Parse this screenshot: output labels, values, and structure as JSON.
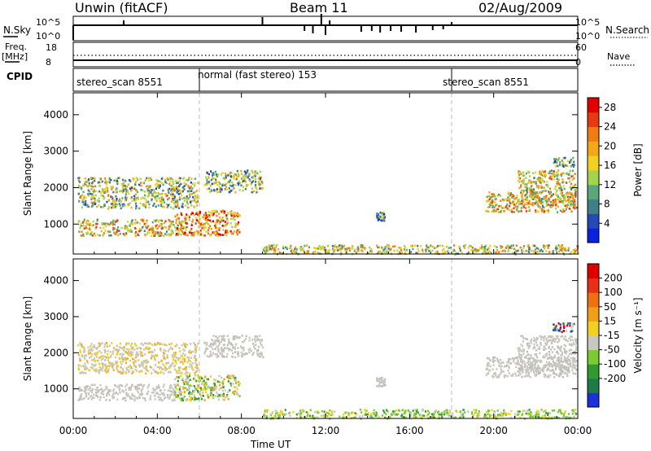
{
  "header": {
    "station": "Unwin (fitACF)",
    "beam": "Beam 11",
    "date": "02/Aug/2009"
  },
  "params": {
    "nsky_label": "N.Sky",
    "nsearch_label": "N.Search",
    "nsky_ticks": [
      "10^5",
      "10^0"
    ],
    "freq_label": "Freq.",
    "freq_unit": "[MHz]",
    "freq_ticks": [
      "18",
      "8"
    ],
    "nave_label": "Nave",
    "nave_ticks": [
      "60",
      "0"
    ],
    "cpid_label": "CPID",
    "cpid_segments": [
      {
        "label": "stereo_scan 8551",
        "start_h": 0,
        "end_h": 6
      },
      {
        "label": "normal (fast stereo) 153",
        "start_h": 6,
        "end_h": 18
      },
      {
        "label": "stereo_scan 8551",
        "start_h": 18,
        "end_h": 24
      }
    ]
  },
  "chart_data": [
    {
      "type": "heatmap",
      "panel": "power",
      "ylabel": "Slant Range [km]",
      "xlabel": "Time UT",
      "xticks": [
        "00:00",
        "04:00",
        "08:00",
        "12:00",
        "16:00",
        "20:00",
        "00:00"
      ],
      "yticks": [
        "1000",
        "2000",
        "3000",
        "4000"
      ],
      "xlim_hours": [
        0,
        24
      ],
      "ylim_km": [
        180,
        4600
      ],
      "colorbar": {
        "label": "Power [dB]",
        "ticks": [
          "4",
          "8",
          "12",
          "16",
          "20",
          "24",
          "28"
        ],
        "range": [
          0,
          30
        ],
        "colors": [
          "#0a22e0",
          "#2648b8",
          "#3f7f86",
          "#58a87a",
          "#a6d34e",
          "#f0d020",
          "#f2a818",
          "#f07d10",
          "#e83a10",
          "#e00000"
        ]
      },
      "echo_regions": [
        {
          "t0": 0.2,
          "t1": 5.9,
          "r0": 1450,
          "r1": 2300,
          "level": 0.45
        },
        {
          "t0": 0.2,
          "t1": 5.2,
          "r0": 700,
          "r1": 1150,
          "level": 0.55
        },
        {
          "t0": 4.8,
          "t1": 7.9,
          "r0": 700,
          "r1": 1400,
          "level": 0.7
        },
        {
          "t0": 6.2,
          "t1": 9.0,
          "r0": 1900,
          "r1": 2500,
          "level": 0.4
        },
        {
          "t0": 9.0,
          "t1": 24.0,
          "r0": 200,
          "r1": 450,
          "level": 0.5
        },
        {
          "t0": 14.4,
          "t1": 14.8,
          "r0": 1100,
          "r1": 1350,
          "level": 0.3
        },
        {
          "t0": 19.6,
          "t1": 23.9,
          "r0": 1350,
          "r1": 1900,
          "level": 0.6
        },
        {
          "t0": 21.1,
          "t1": 23.9,
          "r0": 1500,
          "r1": 2500,
          "level": 0.55
        },
        {
          "t0": 22.8,
          "t1": 23.8,
          "r0": 2600,
          "r1": 2850,
          "level": 0.35
        }
      ]
    },
    {
      "type": "heatmap",
      "panel": "velocity",
      "ylabel": "Slant Range [km]",
      "xlabel": "Time UT",
      "xticks": [
        "00:00",
        "04:00",
        "08:00",
        "12:00",
        "16:00",
        "20:00",
        "00:00"
      ],
      "yticks": [
        "1000",
        "2000",
        "3000",
        "4000"
      ],
      "xlim_hours": [
        0,
        24
      ],
      "ylim_km": [
        180,
        4600
      ],
      "colorbar": {
        "label": "Velocity [m s⁻¹]",
        "ticks": [
          "200",
          "100",
          "50",
          "15",
          "-15",
          "-50",
          "-100",
          "-200"
        ],
        "colors": [
          "#1d2fd8",
          "#1f7a4a",
          "#2f9a2f",
          "#7acb30",
          "#c8c8c0",
          "#f0d020",
          "#f0a018",
          "#f07010",
          "#e83018",
          "#e00000"
        ]
      },
      "echo_regions": [
        {
          "t0": 0.2,
          "t1": 5.9,
          "r0": 1450,
          "r1": 2300,
          "class": "gray-orange"
        },
        {
          "t0": 0.2,
          "t1": 5.2,
          "r0": 700,
          "r1": 1150,
          "class": "gray"
        },
        {
          "t0": 4.8,
          "t1": 7.9,
          "r0": 700,
          "r1": 1400,
          "class": "green-orange"
        },
        {
          "t0": 6.2,
          "t1": 9.0,
          "r0": 1900,
          "r1": 2500,
          "class": "gray"
        },
        {
          "t0": 9.0,
          "t1": 24.0,
          "r0": 200,
          "r1": 450,
          "class": "green"
        },
        {
          "t0": 14.4,
          "t1": 14.8,
          "r0": 1100,
          "r1": 1350,
          "class": "gray"
        },
        {
          "t0": 19.6,
          "t1": 23.9,
          "r0": 1350,
          "r1": 1900,
          "class": "gray"
        },
        {
          "t0": 21.1,
          "t1": 23.9,
          "r0": 1500,
          "r1": 2500,
          "class": "gray"
        },
        {
          "t0": 22.8,
          "t1": 23.8,
          "r0": 2600,
          "r1": 2850,
          "class": "blue-red"
        }
      ]
    }
  ]
}
